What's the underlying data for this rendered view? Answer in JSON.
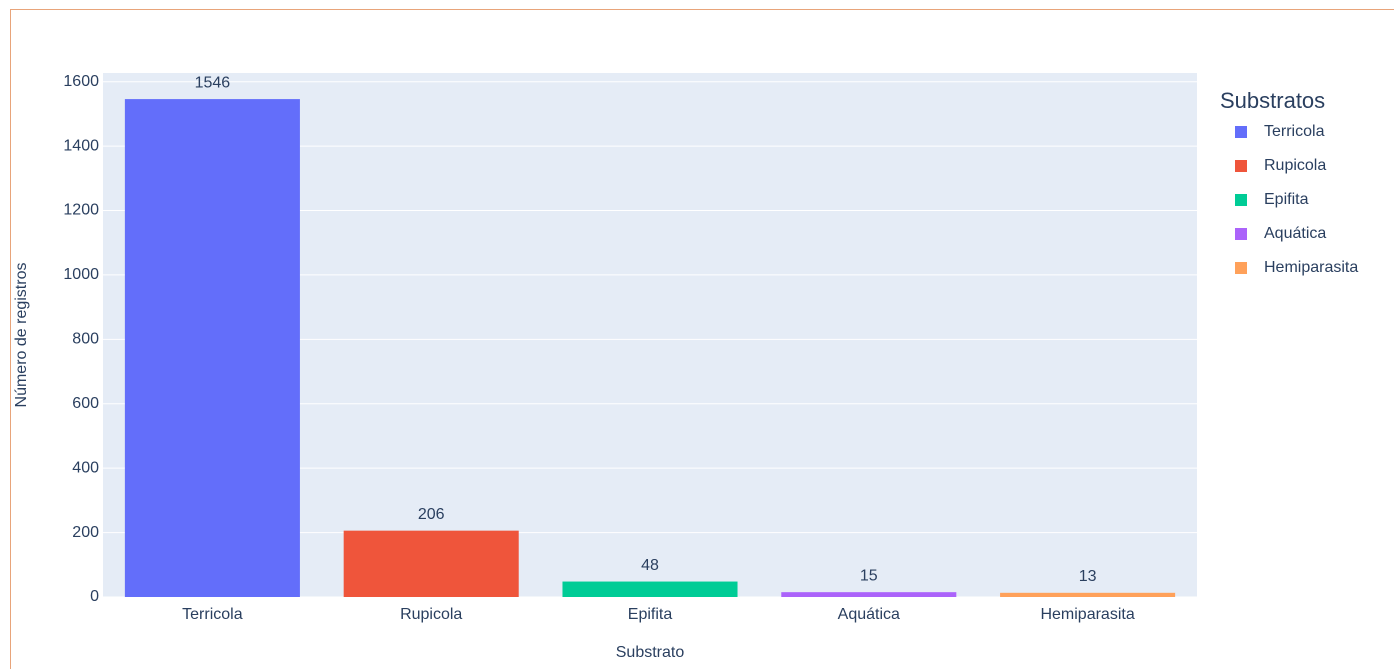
{
  "chart_data": {
    "type": "bar",
    "categories": [
      "Terricola",
      "Rupicola",
      "Epifita",
      "Aquática",
      "Hemiparasita"
    ],
    "values": [
      1546,
      206,
      48,
      15,
      13
    ],
    "colors": [
      "#636efa",
      "#ef553b",
      "#00cc96",
      "#ab63fa",
      "#ffa15a"
    ],
    "x_label": "Substrato",
    "y_label": "Número de registros",
    "legend_title": "Substratos",
    "legend_position": "right",
    "ylim": [
      0,
      1627
    ],
    "yticks": [
      0,
      200,
      400,
      600,
      800,
      1000,
      1200,
      1400,
      1600
    ],
    "grid": true
  }
}
